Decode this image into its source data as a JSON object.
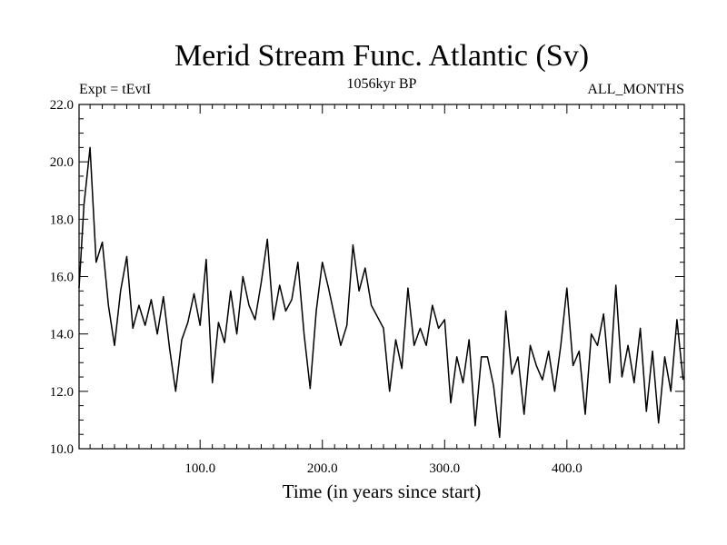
{
  "chart_data": {
    "type": "line",
    "title": "Merid Stream Func. Atlantic (Sv)",
    "subtitle": "1056kyr BP",
    "left_label": "Expt = tEvtI",
    "right_label": "ALL_MONTHS",
    "xlabel": "Time (in years since start)",
    "ylabel": "",
    "xlim": [
      1,
      496
    ],
    "ylim": [
      10.0,
      22.0
    ],
    "x_ticks": [
      100,
      200,
      300,
      400
    ],
    "x_tick_labels": [
      "100.0",
      "200.0",
      "300.0",
      "400.0"
    ],
    "y_ticks": [
      10,
      12,
      14,
      16,
      18,
      20,
      22
    ],
    "y_tick_labels": [
      "10.0",
      "12.0",
      "14.0",
      "16.0",
      "18.0",
      "20.0",
      "22.0"
    ],
    "series": [
      {
        "name": "Merid Stream Func. Atlantic",
        "color": "#000000",
        "x": [
          1,
          5,
          10,
          15,
          20,
          25,
          30,
          35,
          40,
          45,
          50,
          55,
          60,
          65,
          70,
          75,
          80,
          85,
          90,
          95,
          100,
          105,
          110,
          115,
          120,
          125,
          130,
          135,
          140,
          145,
          150,
          155,
          160,
          165,
          170,
          175,
          180,
          185,
          190,
          195,
          200,
          205,
          210,
          215,
          220,
          225,
          230,
          235,
          240,
          245,
          250,
          255,
          260,
          265,
          270,
          275,
          280,
          285,
          290,
          295,
          300,
          305,
          310,
          315,
          320,
          325,
          330,
          335,
          340,
          345,
          350,
          355,
          360,
          365,
          370,
          375,
          380,
          385,
          390,
          395,
          400,
          405,
          410,
          415,
          420,
          425,
          430,
          435,
          440,
          445,
          450,
          455,
          460,
          465,
          470,
          475,
          480,
          485,
          490,
          495
        ],
        "y": [
          15.6,
          18.5,
          20.5,
          16.5,
          17.2,
          15.0,
          13.6,
          15.5,
          16.7,
          14.2,
          15.0,
          14.3,
          15.2,
          14.0,
          15.3,
          13.5,
          12.0,
          13.8,
          14.4,
          15.4,
          14.3,
          16.6,
          12.3,
          14.4,
          13.7,
          15.5,
          14.0,
          16.0,
          15.0,
          14.5,
          15.8,
          17.3,
          14.5,
          15.7,
          14.8,
          15.2,
          16.5,
          14.0,
          12.1,
          14.8,
          16.5,
          15.6,
          14.6,
          13.6,
          14.3,
          17.1,
          15.5,
          16.3,
          15.0,
          14.6,
          14.2,
          12.0,
          13.8,
          12.8,
          15.6,
          13.6,
          14.2,
          13.6,
          15.0,
          14.2,
          14.5,
          11.6,
          13.2,
          12.3,
          13.8,
          10.8,
          13.2,
          13.2,
          12.2,
          10.4,
          14.8,
          12.6,
          13.2,
          11.2,
          13.6,
          12.9,
          12.4,
          13.4,
          12.0,
          13.6,
          15.6,
          12.9,
          13.4,
          11.2,
          14.0,
          13.6,
          14.7,
          12.3,
          15.7,
          12.5,
          13.6,
          12.3,
          14.2,
          11.3,
          13.4,
          10.9,
          13.2,
          12.0,
          14.5,
          12.4
        ]
      }
    ]
  }
}
